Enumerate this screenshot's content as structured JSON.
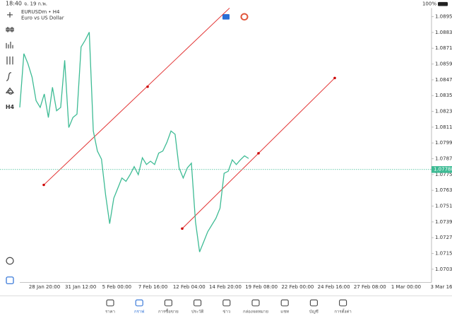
{
  "status_bar": {
    "time": "18:40",
    "date": "จ. 19 ก.พ.",
    "battery": "100%"
  },
  "chart_data": {
    "type": "line",
    "symbol": "EURUSDm • H4",
    "description": "Euro vs US Dollar",
    "timeframe": "H4",
    "color": "#3dbb94",
    "values": [
      1.0826,
      1.08669,
      1.08592,
      1.0849,
      1.08311,
      1.0826,
      1.08362,
      1.08183,
      1.08413,
      1.08235,
      1.0826,
      1.08618,
      1.08107,
      1.08183,
      1.08209,
      1.0872,
      1.08771,
      1.08832,
      1.08081,
      1.07928,
      1.07867,
      1.07596,
      1.07376,
      1.0757,
      1.07647,
      1.07724,
      1.07698,
      1.07749,
      1.0781,
      1.07749,
      1.07877,
      1.07826,
      1.07851,
      1.07826,
      1.07913,
      1.07928,
      1.07994,
      1.08081,
      1.08056,
      1.078,
      1.07724,
      1.078,
      1.07836,
      1.07391,
      1.07161,
      1.07238,
      1.07315,
      1.07366,
      1.07417,
      1.07494,
      1.07759,
      1.07775,
      1.07862,
      1.07826,
      1.07862,
      1.07892,
      1.07872
    ],
    "current_price": 1.07788,
    "ylim": [
      1.0693,
      1.09
    ],
    "yticks": [
      {
        "value": 1.0895,
        "label": "1.08950"
      },
      {
        "value": 1.0883,
        "label": "1.08830"
      },
      {
        "value": 1.0871,
        "label": "1.08710"
      },
      {
        "value": 1.0859,
        "label": "1.08590"
      },
      {
        "value": 1.0847,
        "label": "1.08470"
      },
      {
        "value": 1.0835,
        "label": "1.08350"
      },
      {
        "value": 1.0823,
        "label": "1.08230"
      },
      {
        "value": 1.0811,
        "label": "1.08110"
      },
      {
        "value": 1.0799,
        "label": "1.07990"
      },
      {
        "value": 1.0787,
        "label": "1.07870"
      },
      {
        "value": 1.0775,
        "label": "1.07750"
      },
      {
        "value": 1.0763,
        "label": "1.07630"
      },
      {
        "value": 1.0751,
        "label": "1.07510"
      },
      {
        "value": 1.0739,
        "label": "1.07390"
      },
      {
        "value": 1.0727,
        "label": "1.07270"
      },
      {
        "value": 1.0715,
        "label": "1.07150"
      },
      {
        "value": 1.0703,
        "label": "1.07030"
      }
    ],
    "x_labels": [
      "28 Jan 20:00",
      "31 Jan 12:00",
      "5 Feb 00:00",
      "7 Feb 16:00",
      "12 Feb 04:00",
      "14 Feb 20:00",
      "19 Feb 08:00",
      "22 Feb 00:00",
      "24 Feb 16:00",
      "27 Feb 08:00",
      "1 Mar 00:00",
      "3 Mar 16:"
    ]
  },
  "nav": [
    "ราคา",
    "กราฟ",
    "การซื้อขาย",
    "ประวัติ",
    "ข่าว",
    "กล่องจดหมาย",
    "แชท",
    "บัญชี",
    "การตั้งค่า"
  ]
}
